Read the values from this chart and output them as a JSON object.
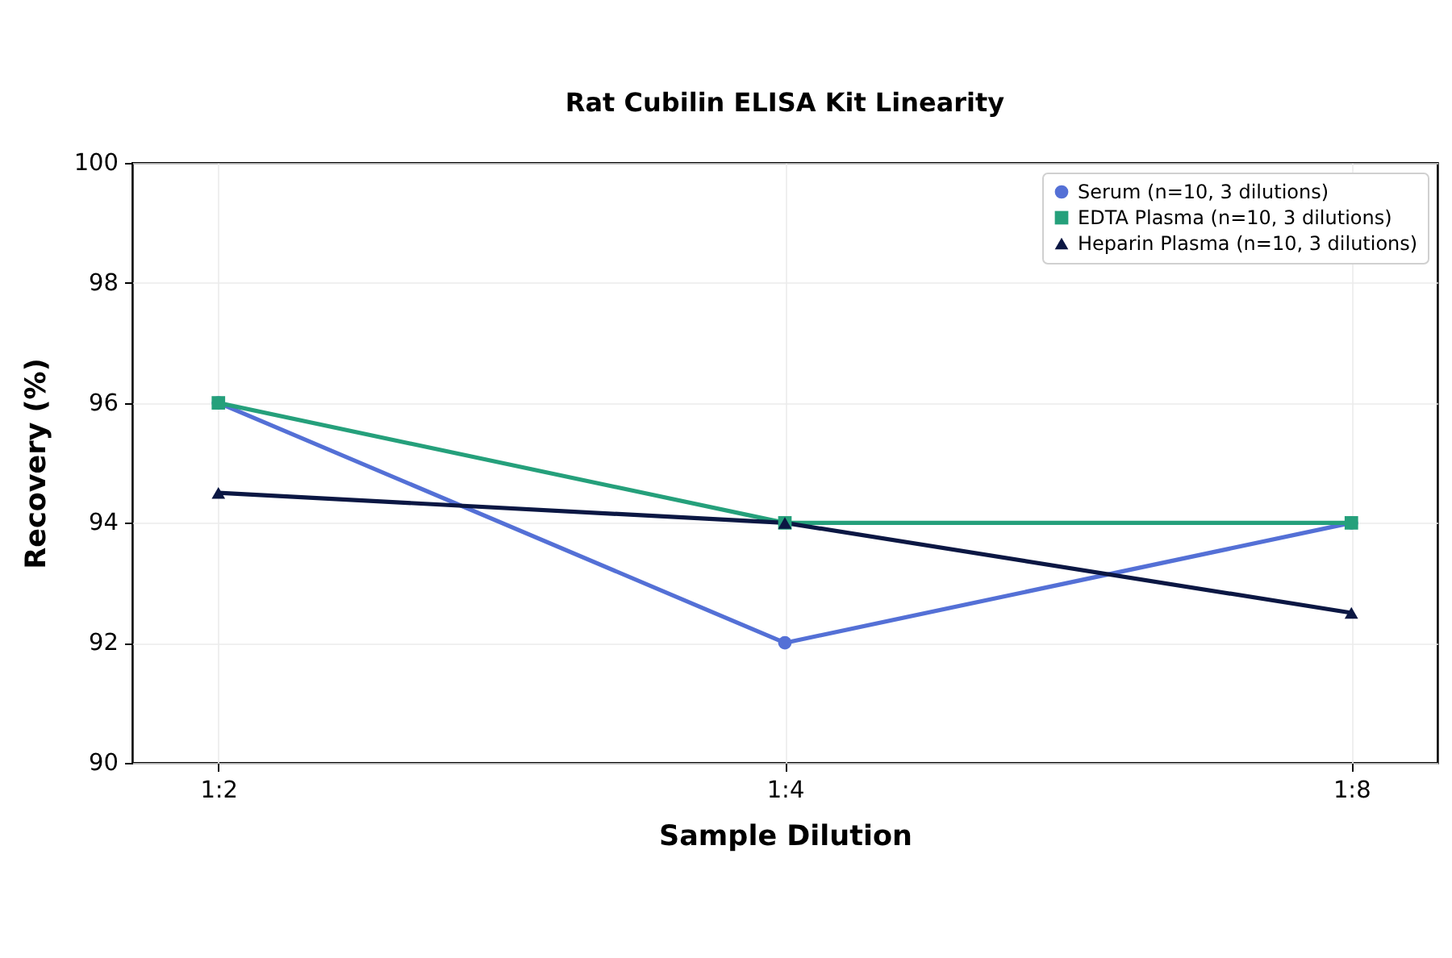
{
  "chart_data": {
    "type": "line",
    "title": "Rat Cubilin ELISA Kit Linearity",
    "xlabel": "Sample Dilution",
    "ylabel": "Recovery (%)",
    "categories": [
      "1:2",
      "1:4",
      "1:8"
    ],
    "series": [
      {
        "name": "Serum (n=10, 3 dilutions)",
        "color": "#5470d6",
        "marker": "circle",
        "values": [
          96,
          92,
          94
        ]
      },
      {
        "name": "EDTA Plasma (n=10, 3 dilutions)",
        "color": "#25a07b",
        "marker": "square",
        "values": [
          96,
          94,
          94
        ]
      },
      {
        "name": "Heparin Plasma (n=10, 3 dilutions)",
        "color": "#0b1743",
        "marker": "triangle",
        "values": [
          94.5,
          94,
          92.5
        ]
      }
    ],
    "ylim": [
      90,
      100
    ],
    "yticks": [
      90,
      92,
      94,
      96,
      98,
      100
    ],
    "grid": true,
    "legend": "top right",
    "line_style": "solid"
  }
}
